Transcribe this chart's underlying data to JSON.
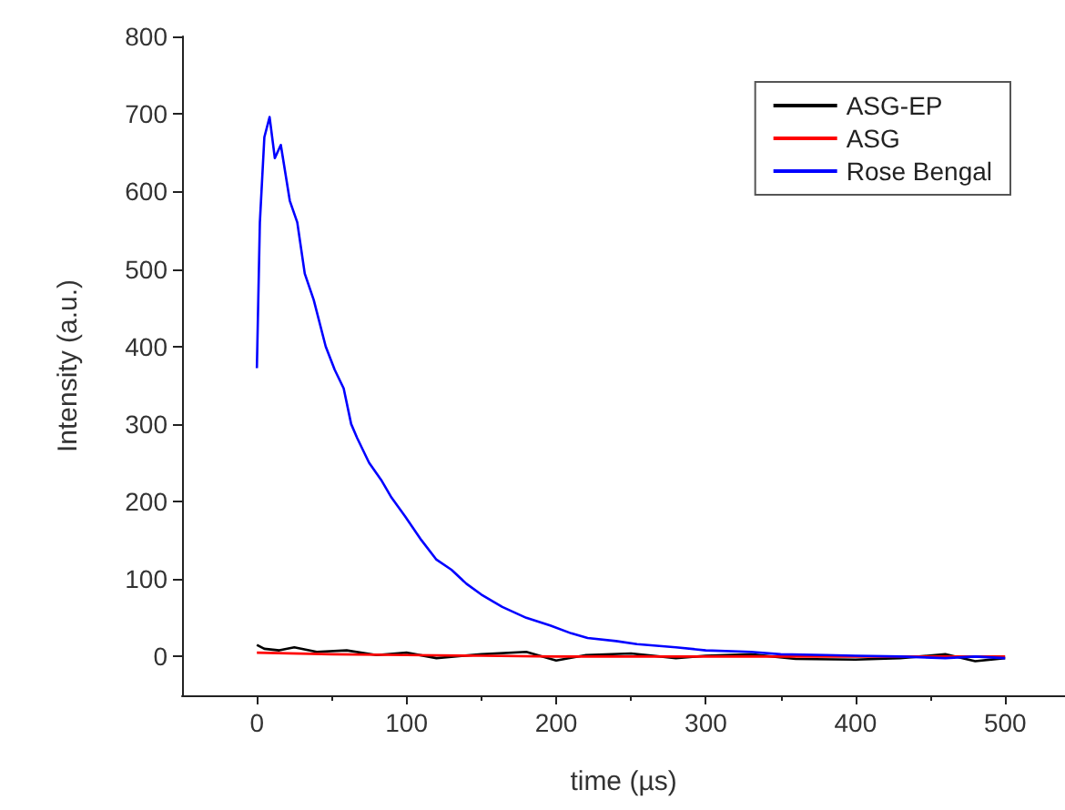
{
  "chart_data": {
    "type": "line",
    "xlabel": "time (µs)",
    "ylabel": "Intensity (a.u.)",
    "xlim": [
      -50,
      540
    ],
    "ylim": [
      -50,
      800
    ],
    "xticks": [
      0,
      100,
      200,
      300,
      400,
      500
    ],
    "yticks": [
      0,
      100,
      200,
      300,
      400,
      500,
      600,
      700,
      800
    ],
    "grid": false,
    "legend": "top right",
    "marker": "none",
    "line_style": "solid",
    "series": [
      {
        "name": "ASG-EP",
        "color": "#000000",
        "x": [
          0,
          5,
          15,
          25,
          40,
          60,
          80,
          100,
          120,
          150,
          180,
          200,
          220,
          250,
          280,
          300,
          330,
          360,
          400,
          430,
          460,
          480,
          500
        ],
        "values": [
          15,
          10,
          8,
          12,
          6,
          8,
          2,
          5,
          -2,
          3,
          6,
          -5,
          2,
          4,
          -2,
          1,
          3,
          -3,
          -4,
          -2,
          3,
          -6,
          -2
        ]
      },
      {
        "name": "ASG",
        "color": "#ff0000",
        "x": [
          0,
          50,
          100,
          150,
          200,
          250,
          300,
          350,
          400,
          450,
          500
        ],
        "values": [
          5,
          3,
          2,
          1,
          0,
          0,
          0,
          0,
          0,
          0,
          0
        ]
      },
      {
        "name": "Rose Bengal",
        "color": "#0000ff",
        "x": [
          0,
          2,
          5,
          8.5,
          12,
          16,
          22,
          27,
          32,
          38,
          46,
          52,
          58,
          63,
          67,
          75,
          83,
          90,
          99,
          110,
          120,
          130,
          140,
          150,
          164,
          180,
          196,
          210,
          221,
          240,
          254,
          280,
          300,
          330,
          350,
          380,
          400,
          430,
          460,
          480,
          500
        ],
        "values": [
          372,
          560,
          670,
          696,
          643,
          660,
          588,
          560,
          494,
          460,
          400,
          370,
          346,
          300,
          282,
          250,
          228,
          205,
          181,
          150,
          125,
          112,
          94,
          80,
          64,
          50,
          40,
          30,
          24,
          20,
          16,
          12,
          8,
          6,
          3,
          2,
          1,
          0,
          -2,
          0,
          -2
        ]
      }
    ]
  }
}
